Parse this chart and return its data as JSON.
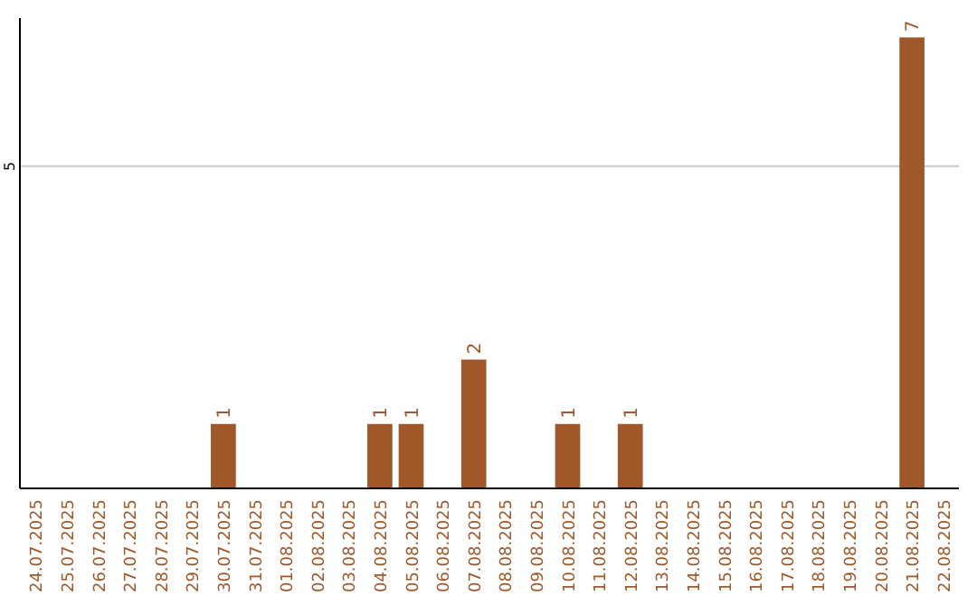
{
  "chart_data": {
    "type": "bar",
    "categories": [
      "24.07.2025",
      "25.07.2025",
      "26.07.2025",
      "27.07.2025",
      "28.07.2025",
      "29.07.2025",
      "30.07.2025",
      "31.07.2025",
      "01.08.2025",
      "02.08.2025",
      "03.08.2025",
      "04.08.2025",
      "05.08.2025",
      "06.08.2025",
      "07.08.2025",
      "08.08.2025",
      "09.08.2025",
      "10.08.2025",
      "11.08.2025",
      "12.08.2025",
      "13.08.2025",
      "14.08.2025",
      "15.08.2025",
      "16.08.2025",
      "17.08.2025",
      "18.08.2025",
      "19.08.2025",
      "20.08.2025",
      "21.08.2025",
      "22.08.2025"
    ],
    "values": [
      0,
      0,
      0,
      0,
      0,
      0,
      1,
      0,
      0,
      0,
      0,
      1,
      1,
      0,
      2,
      0,
      0,
      1,
      0,
      1,
      0,
      0,
      0,
      0,
      0,
      0,
      0,
      0,
      7,
      0
    ],
    "value_labels": [
      null,
      null,
      null,
      null,
      null,
      null,
      "1",
      null,
      null,
      null,
      null,
      "1",
      "1",
      null,
      "2",
      null,
      null,
      "1",
      null,
      "1",
      null,
      null,
      null,
      null,
      null,
      null,
      null,
      null,
      "7",
      null
    ],
    "color": "#a0582a",
    "ylim": [
      0,
      7.3
    ],
    "yticks": [
      5
    ],
    "grid": "y"
  }
}
